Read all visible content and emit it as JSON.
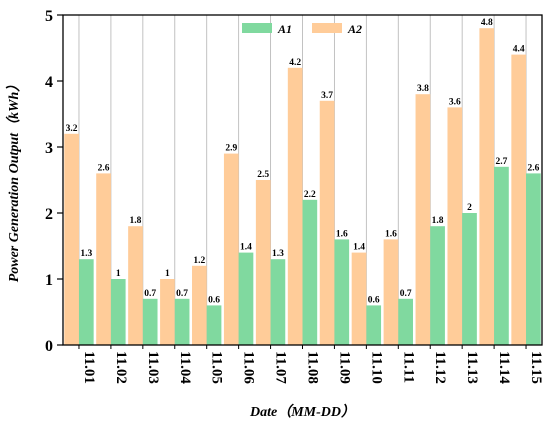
{
  "chart_data": {
    "type": "bar",
    "categories": [
      "11.01",
      "11.02",
      "11.03",
      "11.04",
      "11.05",
      "11.06",
      "11.07",
      "11.08",
      "11.09",
      "11.10",
      "11.11",
      "11.12",
      "11.13",
      "11.14",
      "11.15"
    ],
    "series": [
      {
        "name": "A2",
        "values": [
          3.2,
          2.6,
          1.8,
          1,
          1.2,
          2.9,
          2.5,
          4.2,
          3.7,
          1.4,
          1.6,
          3.8,
          3.6,
          4.8,
          4.4
        ],
        "color": "#FFCC99"
      },
      {
        "name": "A1",
        "values": [
          1.3,
          1,
          0.7,
          0.7,
          0.6,
          1.4,
          1.3,
          2.2,
          1.6,
          0.6,
          0.7,
          1.8,
          2,
          2.7,
          2.6
        ],
        "color": "#80D99F"
      }
    ],
    "legend_order": [
      "A1",
      "A2"
    ],
    "legend_position": "top-center",
    "xlabel": "Date（MM-DD）",
    "ylabel": "Power Generation Output（kWh）",
    "ylim": [
      0,
      5
    ],
    "yticks": [
      0,
      1,
      2,
      3,
      4,
      5
    ],
    "ytick_labels": [
      "0",
      "1",
      "2",
      "3",
      "4",
      "5"
    ],
    "grid": "vertical",
    "grid_color": "#bbbbbb"
  }
}
